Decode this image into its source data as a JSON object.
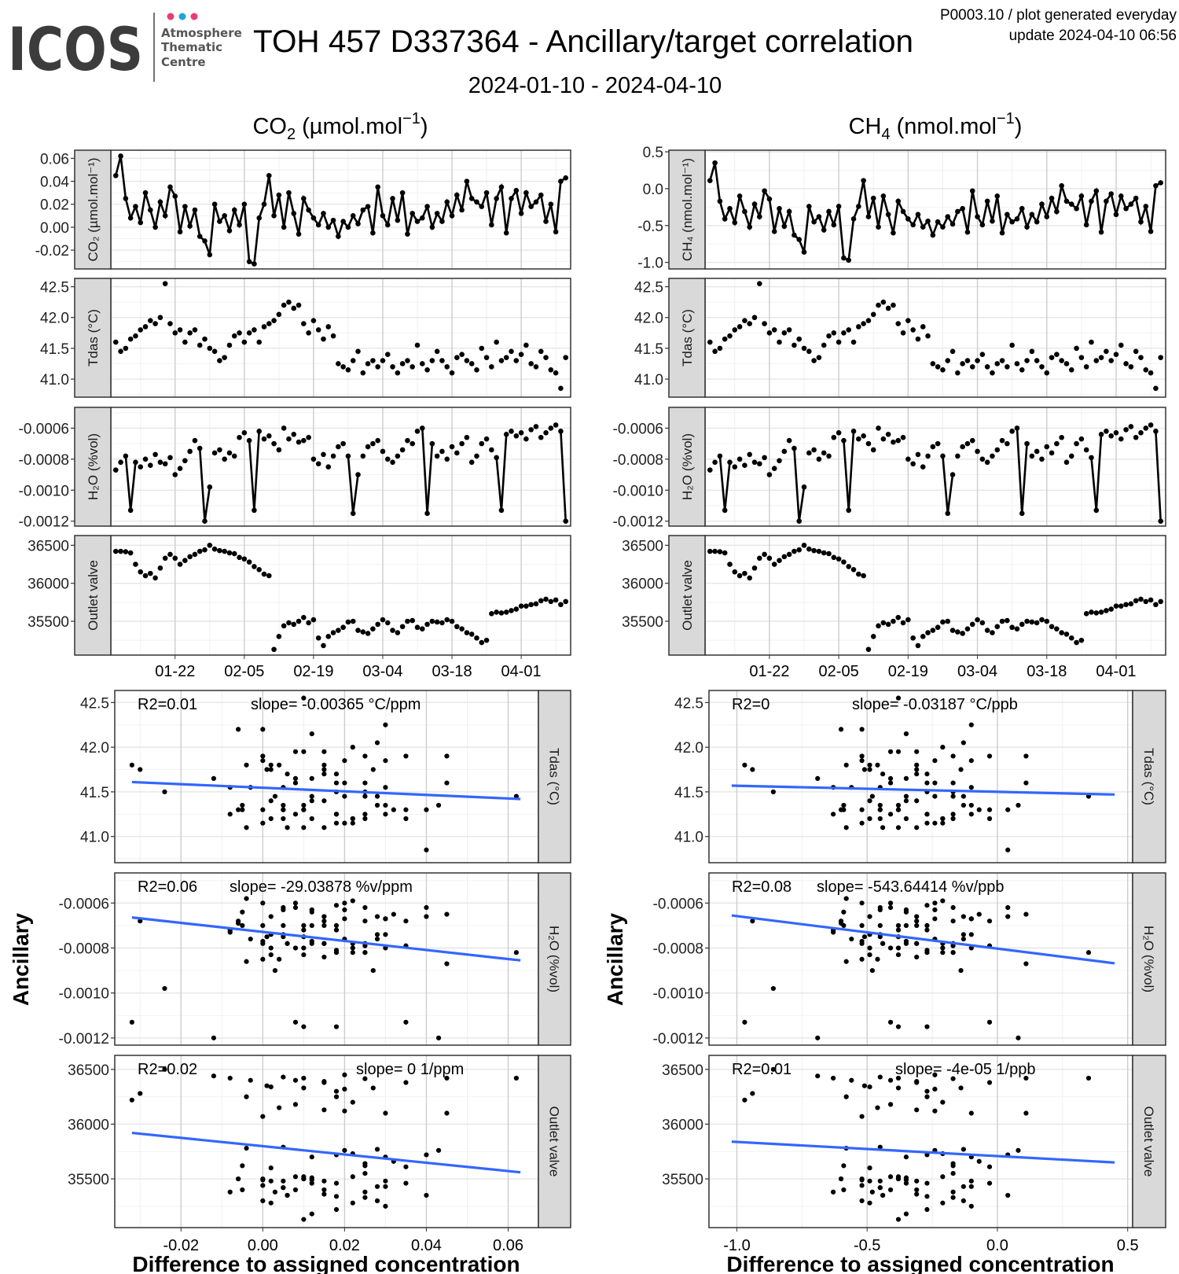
{
  "header": {
    "logo_text": "ICOS",
    "logo_sub": [
      "Atmosphere",
      "Thematic",
      "Centre"
    ],
    "title": "TOH 457 D337364 - Ancillary/target correlation",
    "subtitle": "2024-01-10 - 2024-04-10",
    "info_line1": "P0003.10 / plot generated everyday",
    "info_line2": "update  2024-04-10 06:56"
  },
  "colors": {
    "logo_dot_1": "#e83c78",
    "logo_dot_2": "#1fa3e0",
    "logo_dot_3": "#e83c78",
    "fit_line": "#3366FF",
    "points": "#000000",
    "strip_bg": "#D9D9D9"
  },
  "columns": [
    {
      "title_a": "CO",
      "title_sub": "2",
      "title_b": " (µmol.mol",
      "title_sup": "−1",
      "title_c": ")"
    },
    {
      "title_a": "CH",
      "title_sub": "4",
      "title_b": " (nmol.mol",
      "title_sup": "−1",
      "title_c": ")"
    }
  ],
  "y_axis_label": "Ancillary",
  "x_axis_label": "Difference to assigned concentration",
  "chart_data": {
    "type": "line+scatter",
    "time_axis": {
      "start_date": "2024-01-10",
      "xlim_days": [
        -1,
        92
      ],
      "ticks": [
        {
          "day": 12,
          "label": "01-22"
        },
        {
          "day": 26,
          "label": "02-05"
        },
        {
          "day": 40,
          "label": "02-19"
        },
        {
          "day": 54,
          "label": "03-04"
        },
        {
          "day": 68,
          "label": "03-18"
        },
        {
          "day": 82,
          "label": "04-01"
        }
      ]
    },
    "series": {
      "co2": [
        0.045,
        0.062,
        0.025,
        0.008,
        0.018,
        0.004,
        0.03,
        0.015,
        0.0,
        0.022,
        0.01,
        0.035,
        0.027,
        -0.004,
        0.018,
        0.001,
        0.015,
        -0.008,
        -0.012,
        -0.024,
        0.02,
        0.005,
        0.01,
        -0.003,
        0.015,
        0.002,
        0.02,
        -0.03,
        -0.032,
        0.008,
        0.02,
        0.045,
        0.01,
        0.028,
        0.0,
        0.03,
        0.012,
        -0.006,
        0.025,
        0.015,
        0.008,
        0.002,
        0.012,
        0.0,
        0.006,
        -0.008,
        0.005,
        0.0,
        0.01,
        0.003,
        0.015,
        0.018,
        -0.005,
        0.035,
        0.01,
        0.002,
        0.025,
        0.006,
        0.03,
        -0.006,
        0.012,
        0.005,
        0.008,
        0.018,
        0.0,
        0.012,
        0.005,
        0.022,
        0.01,
        0.028,
        0.015,
        0.04,
        0.025,
        0.022,
        0.018,
        0.03,
        0.002,
        0.025,
        0.035,
        -0.005,
        0.025,
        0.032,
        0.012,
        0.03,
        0.018,
        0.022,
        0.028,
        0.005,
        0.02,
        -0.004,
        0.04,
        0.043
      ],
      "ch4": [
        0.11,
        0.35,
        -0.17,
        -0.41,
        -0.27,
        -0.46,
        -0.1,
        -0.31,
        -0.52,
        -0.21,
        -0.38,
        -0.03,
        -0.14,
        -0.58,
        -0.27,
        -0.51,
        -0.31,
        -0.63,
        -0.69,
        -0.86,
        -0.24,
        -0.45,
        -0.38,
        -0.56,
        -0.31,
        -0.49,
        -0.24,
        -0.94,
        -0.97,
        -0.41,
        -0.24,
        0.11,
        -0.38,
        -0.13,
        -0.52,
        -0.1,
        -0.35,
        -0.6,
        -0.17,
        -0.31,
        -0.41,
        -0.49,
        -0.35,
        -0.52,
        -0.44,
        -0.63,
        -0.45,
        -0.52,
        -0.38,
        -0.48,
        -0.31,
        -0.27,
        -0.59,
        -0.03,
        -0.38,
        -0.49,
        -0.17,
        -0.44,
        -0.1,
        -0.6,
        -0.35,
        -0.45,
        -0.41,
        -0.27,
        -0.52,
        -0.35,
        -0.45,
        -0.21,
        -0.38,
        -0.13,
        -0.31,
        0.04,
        -0.17,
        -0.21,
        -0.27,
        -0.1,
        -0.49,
        -0.17,
        -0.03,
        -0.59,
        -0.17,
        -0.07,
        -0.35,
        -0.1,
        -0.27,
        -0.21,
        -0.13,
        -0.45,
        -0.24,
        -0.58,
        0.04,
        0.08
      ],
      "tdas": [
        41.6,
        41.45,
        41.5,
        41.65,
        41.7,
        41.8,
        41.85,
        41.95,
        41.9,
        42.0,
        42.55,
        41.9,
        41.75,
        41.8,
        41.6,
        41.75,
        41.8,
        41.55,
        41.65,
        41.5,
        41.45,
        41.3,
        41.35,
        41.55,
        41.7,
        41.75,
        41.6,
        41.75,
        41.8,
        41.6,
        41.85,
        41.9,
        41.95,
        42.05,
        42.2,
        42.25,
        42.15,
        42.2,
        41.9,
        41.75,
        41.95,
        41.8,
        41.65,
        41.85,
        41.7,
        41.25,
        41.2,
        41.15,
        41.3,
        41.45,
        41.1,
        41.25,
        41.3,
        41.2,
        41.3,
        41.4,
        41.2,
        41.1,
        41.25,
        41.3,
        41.2,
        41.55,
        41.25,
        41.15,
        41.3,
        41.45,
        41.3,
        41.2,
        41.1,
        41.35,
        41.4,
        41.3,
        41.25,
        41.15,
        41.5,
        41.35,
        41.2,
        41.6,
        41.3,
        41.35,
        41.45,
        41.3,
        41.4,
        41.55,
        41.25,
        41.2,
        41.45,
        41.35,
        41.15,
        41.1,
        40.85,
        41.35
      ],
      "h2o": [
        -0.00087,
        -0.00082,
        -0.00078,
        -0.00113,
        -0.00082,
        -0.00085,
        -0.0008,
        -0.00084,
        -0.00077,
        -0.00082,
        -0.00083,
        -0.00079,
        -0.0009,
        -0.00086,
        -0.00081,
        -0.00075,
        -0.00068,
        -0.00073,
        -0.0012,
        -0.00098,
        -0.00076,
        -0.00074,
        -0.0008,
        -0.00076,
        -0.00078,
        -0.00066,
        -0.00063,
        -0.00068,
        -0.00113,
        -0.00062,
        -0.00067,
        -0.00065,
        -0.0007,
        -0.00074,
        -0.0006,
        -0.00067,
        -0.00064,
        -0.00069,
        -0.00068,
        -0.00066,
        -0.0008,
        -0.00083,
        -0.00077,
        -0.00085,
        -0.00078,
        -0.00072,
        -0.0007,
        -0.00078,
        -0.00115,
        -0.0009,
        -0.00078,
        -0.00072,
        -0.0007,
        -0.00068,
        -0.00075,
        -0.0008,
        -0.00082,
        -0.00078,
        -0.00074,
        -0.00068,
        -0.0007,
        -0.00062,
        -0.0006,
        -0.00115,
        -0.0007,
        -0.00078,
        -0.00075,
        -0.0008,
        -0.00072,
        -0.00076,
        -0.0007,
        -0.00066,
        -0.00082,
        -0.00078,
        -0.0007,
        -0.00067,
        -0.00074,
        -0.00079,
        -0.00113,
        -0.00064,
        -0.00062,
        -0.00065,
        -0.00063,
        -0.00067,
        -0.00061,
        -0.00059,
        -0.00066,
        -0.00063,
        -0.0006,
        -0.00058,
        -0.00062,
        -0.0012
      ],
      "outlet": [
        36420,
        36420,
        36415,
        36400,
        36250,
        36150,
        36100,
        36130,
        36070,
        36200,
        36330,
        36380,
        36330,
        36250,
        36300,
        36350,
        36380,
        36420,
        36440,
        36500,
        36450,
        36430,
        36420,
        36400,
        36390,
        36340,
        36320,
        36280,
        36220,
        36180,
        36120,
        36100,
        35130,
        35300,
        35440,
        35480,
        35460,
        35500,
        35550,
        35480,
        35520,
        35280,
        35180,
        35300,
        35350,
        35380,
        35420,
        35490,
        35500,
        35380,
        35360,
        35340,
        35400,
        35460,
        35520,
        35480,
        35380,
        35350,
        35430,
        35500,
        35510,
        35420,
        35400,
        35460,
        35500,
        35490,
        35480,
        35520,
        35500,
        35430,
        35400,
        35350,
        35330,
        35280,
        35220,
        35250,
        35600,
        35620,
        35610,
        35620,
        35640,
        35660,
        35700,
        35700,
        35720,
        35730,
        35770,
        35790,
        35760,
        35780,
        35720,
        35760
      ]
    },
    "axes": {
      "co2": {
        "ylim": [
          -0.0364,
          0.0671
        ],
        "ticks": [
          {
            "v": 0.06,
            "label": "0.06"
          },
          {
            "v": 0.04,
            "label": "0.04"
          },
          {
            "v": 0.02,
            "label": "0.02"
          },
          {
            "v": 0.0,
            "label": "0.00"
          },
          {
            "v": -0.02,
            "label": "-0.02"
          }
        ]
      },
      "ch4": {
        "ylim": [
          -1.089,
          0.522
        ],
        "ticks": [
          {
            "v": 0.5,
            "label": "0.5"
          },
          {
            "v": 0.0,
            "label": "0.0"
          },
          {
            "v": -0.5,
            "label": "-0.5"
          },
          {
            "v": -1.0,
            "label": "-1.0"
          }
        ]
      },
      "tdas": {
        "ylim": [
          40.707,
          42.635
        ],
        "ticks": [
          {
            "v": 42.5,
            "label": "42.5"
          },
          {
            "v": 42.0,
            "label": "42.0"
          },
          {
            "v": 41.5,
            "label": "41.5"
          },
          {
            "v": 41.0,
            "label": "41.0"
          }
        ]
      },
      "h2o": {
        "ylim": [
          -0.001232,
          -0.000466
        ],
        "ticks": [
          {
            "v": -0.0006,
            "label": "-0.0006"
          },
          {
            "v": -0.0008,
            "label": "-0.0008"
          },
          {
            "v": -0.001,
            "label": "-0.0010"
          },
          {
            "v": -0.0012,
            "label": "-0.0012"
          }
        ]
      },
      "outlet": {
        "ylim": [
          35055,
          36628
        ],
        "ticks": [
          {
            "v": 36500,
            "label": "36500"
          },
          {
            "v": 36000,
            "label": "36000"
          },
          {
            "v": 35500,
            "label": "35500"
          }
        ]
      },
      "co2_x": {
        "xlim": [
          -0.0362,
          0.0674
        ],
        "ticks": [
          {
            "v": -0.02,
            "label": "-0.02"
          },
          {
            "v": 0.0,
            "label": "0.00"
          },
          {
            "v": 0.02,
            "label": "0.02"
          },
          {
            "v": 0.04,
            "label": "0.04"
          },
          {
            "v": 0.06,
            "label": "0.06"
          }
        ]
      },
      "ch4_x": {
        "xlim": [
          -1.107,
          0.519
        ],
        "ticks": [
          {
            "v": -1.0,
            "label": "-1.0"
          },
          {
            "v": -0.5,
            "label": "-0.5"
          },
          {
            "v": 0.0,
            "label": "0.0"
          },
          {
            "v": 0.5,
            "label": "0.5"
          }
        ]
      }
    },
    "strip_labels": {
      "co2": "CO₂ (µmol.mol⁻¹)",
      "ch4": "CH₄ (nmol.mol⁻¹)",
      "tdas": "Tdas (°C)",
      "h2o": "H₂O (%vol)",
      "outlet": "Outlet valve"
    },
    "regressions": {
      "co2": [
        {
          "y": "tdas",
          "r2": "R2=0.01",
          "slope": "slope= -0.00365 °C/ppm",
          "line": [
            [
              -0.032,
              41.61
            ],
            [
              0.063,
              41.42
            ]
          ]
        },
        {
          "y": "h2o",
          "r2": "R2=0.06",
          "slope": "slope= -29.03878 %v/ppm",
          "line": [
            [
              -0.032,
              -0.000664
            ],
            [
              0.063,
              -0.000855
            ]
          ]
        },
        {
          "y": "outlet",
          "r2": "R2=0.02",
          "slope": "slope= 0 1/ppm",
          "line": [
            [
              -0.032,
              35920
            ],
            [
              0.063,
              35560
            ]
          ]
        }
      ],
      "ch4": [
        {
          "y": "tdas",
          "r2": "R2=0",
          "slope": "slope= -0.03187 °C/ppb",
          "line": [
            [
              -1.02,
              41.57
            ],
            [
              0.45,
              41.47
            ]
          ]
        },
        {
          "y": "h2o",
          "r2": "R2=0.08",
          "slope": "slope= -543.64414 %v/ppb",
          "line": [
            [
              -1.02,
              -0.000655
            ],
            [
              0.45,
              -0.000868
            ]
          ]
        },
        {
          "y": "outlet",
          "r2": "R2=0.01",
          "slope": "slope= -4e-05 1/ppb",
          "line": [
            [
              -1.02,
              35840
            ],
            [
              0.45,
              35650
            ]
          ]
        }
      ]
    }
  }
}
